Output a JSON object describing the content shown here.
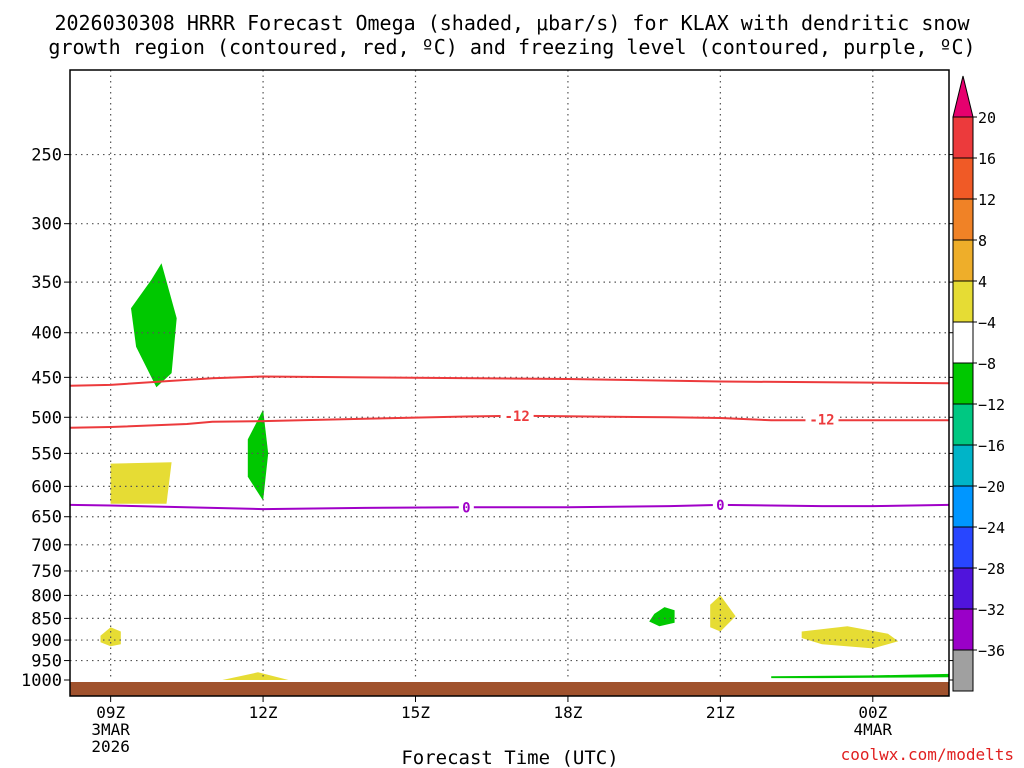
{
  "chart_data": {
    "type": "contour",
    "title_line1": "2026030308 HRRR Forecast Omega (shaded, μbar/s) for KLAX with dendritic snow",
    "title_line2": "growth region (contoured, red, ºC) and freezing level (contoured, purple, ºC)",
    "xlabel": "Forecast Time (UTC)",
    "credit": "coolwx.com/modelts",
    "x_range_hours": [
      -0.8,
      16.5
    ],
    "y_range_hPa": [
      1000,
      200
    ],
    "x_ticks": [
      {
        "hour": 0,
        "lines": [
          "09Z",
          "3MAR",
          "2026"
        ]
      },
      {
        "hour": 3,
        "lines": [
          "12Z"
        ]
      },
      {
        "hour": 6,
        "lines": [
          "15Z"
        ]
      },
      {
        "hour": 9,
        "lines": [
          "18Z"
        ]
      },
      {
        "hour": 12,
        "lines": [
          "21Z"
        ]
      },
      {
        "hour": 15,
        "lines": [
          "00Z",
          "4MAR"
        ]
      }
    ],
    "y_ticks": [
      250,
      300,
      350,
      400,
      450,
      500,
      550,
      600,
      650,
      700,
      750,
      800,
      850,
      900,
      950,
      1000
    ],
    "colorbar": {
      "labels": [
        "20",
        "16",
        "12",
        "8",
        "4",
        "−4",
        "−8",
        "−12",
        "−16",
        "−20",
        "−24",
        "−28",
        "−32",
        "−36"
      ],
      "colors": [
        "#ec3a3c",
        "#f05a26",
        "#f08226",
        "#eeae2a",
        "#e6dc34",
        "#ffffff",
        "#00c800",
        "#00c882",
        "#00b4c8",
        "#0096ff",
        "#2846ff",
        "#5014dc",
        "#9a00c8",
        "#a0a0a0"
      ],
      "top_arrow": "#e6006e",
      "bottom_arrow": "#000000"
    },
    "ground_color": "#a0522d",
    "dgz_contours": [
      {
        "label": "-12",
        "color": "#ec3a3c",
        "points": [
          [
            -0.8,
            460
          ],
          [
            0,
            459
          ],
          [
            1,
            455
          ],
          [
            2,
            451
          ],
          [
            3,
            449
          ],
          [
            5,
            450
          ],
          [
            9,
            452
          ],
          [
            12,
            455
          ],
          [
            16.5,
            457
          ]
        ]
      },
      {
        "label": "-12",
        "color": "#ec3a3c",
        "points": [
          [
            -0.8,
            514
          ],
          [
            0,
            513
          ],
          [
            1.5,
            509
          ],
          [
            2,
            506
          ],
          [
            3,
            505
          ],
          [
            5,
            502
          ],
          [
            7,
            499
          ],
          [
            8,
            498
          ],
          [
            11,
            500
          ],
          [
            12,
            501
          ],
          [
            13,
            504
          ],
          [
            15,
            504
          ],
          [
            16.5,
            504
          ]
        ]
      }
    ],
    "dgz_labels": [
      {
        "hour": 8,
        "hPa": 498,
        "text": "-12"
      },
      {
        "hour": 14,
        "hPa": 503,
        "text": "-12"
      }
    ],
    "freezing_level": {
      "color": "#a000c8",
      "points": [
        [
          -0.8,
          630
        ],
        [
          0,
          631
        ],
        [
          2,
          635
        ],
        [
          3,
          637
        ],
        [
          4,
          636
        ],
        [
          5,
          635
        ],
        [
          7,
          634
        ],
        [
          9,
          634
        ],
        [
          11,
          632
        ],
        [
          12,
          630
        ],
        [
          13,
          631
        ],
        [
          14,
          632
        ],
        [
          15,
          632
        ],
        [
          16.5,
          630
        ]
      ]
    },
    "freezing_labels": [
      {
        "hour": 7,
        "hPa": 634,
        "text": "0"
      },
      {
        "hour": 12,
        "hPa": 630,
        "text": "0"
      }
    ],
    "omega_regions": [
      {
        "sign": "negative",
        "range": "-8 to -4",
        "color": "#00c800",
        "points": [
          [
            0.4,
            375
          ],
          [
            0.8,
            348
          ],
          [
            1.0,
            333
          ],
          [
            1.3,
            385
          ],
          [
            1.2,
            445
          ],
          [
            0.9,
            462
          ],
          [
            0.5,
            415
          ]
        ]
      },
      {
        "sign": "negative",
        "range": "-8 to -4",
        "color": "#00c800",
        "points": [
          [
            2.7,
            530
          ],
          [
            3.0,
            490
          ],
          [
            3.1,
            550
          ],
          [
            3.0,
            623
          ],
          [
            2.7,
            585
          ]
        ]
      },
      {
        "sign": "negative",
        "range": "-8 to -4",
        "color": "#00c800",
        "points": [
          [
            10.7,
            840
          ],
          [
            10.9,
            825
          ],
          [
            11.1,
            832
          ],
          [
            11.1,
            860
          ],
          [
            10.8,
            868
          ],
          [
            10.6,
            857
          ]
        ]
      },
      {
        "sign": "negative",
        "range": "-8 to -4",
        "color": "#00c800",
        "points": [
          [
            13.0,
            990
          ],
          [
            15.0,
            988
          ],
          [
            16.5,
            984
          ],
          [
            16.5,
            993
          ],
          [
            14.0,
            995
          ],
          [
            13.0,
            995
          ]
        ]
      },
      {
        "sign": "positive",
        "range": "4 to 8",
        "color": "#e6dc34",
        "points": [
          [
            0,
            565
          ],
          [
            1.2,
            563
          ],
          [
            1.1,
            628
          ],
          [
            0,
            628
          ]
        ]
      },
      {
        "sign": "positive",
        "range": "4 to 8",
        "color": "#e6dc34",
        "points": [
          [
            -0.2,
            890
          ],
          [
            0,
            870
          ],
          [
            0.2,
            880
          ],
          [
            0.2,
            910
          ],
          [
            0,
            915
          ],
          [
            -0.2,
            905
          ]
        ]
      },
      {
        "sign": "positive",
        "range": "4 to 8",
        "color": "#e6dc34",
        "points": [
          [
            2.2,
            1000
          ],
          [
            2.9,
            980
          ],
          [
            3.5,
            1000
          ]
        ]
      },
      {
        "sign": "positive",
        "range": "4 to 8",
        "color": "#e6dc34",
        "points": [
          [
            11.8,
            820
          ],
          [
            12.0,
            800
          ],
          [
            12.3,
            845
          ],
          [
            12.0,
            880
          ],
          [
            11.8,
            870
          ]
        ]
      },
      {
        "sign": "positive",
        "range": "4 to 8",
        "color": "#e6dc34",
        "points": [
          [
            13.6,
            880
          ],
          [
            14.5,
            868
          ],
          [
            15.3,
            885
          ],
          [
            15.5,
            903
          ],
          [
            15.0,
            920
          ],
          [
            14.0,
            910
          ],
          [
            13.6,
            895
          ]
        ]
      }
    ]
  }
}
